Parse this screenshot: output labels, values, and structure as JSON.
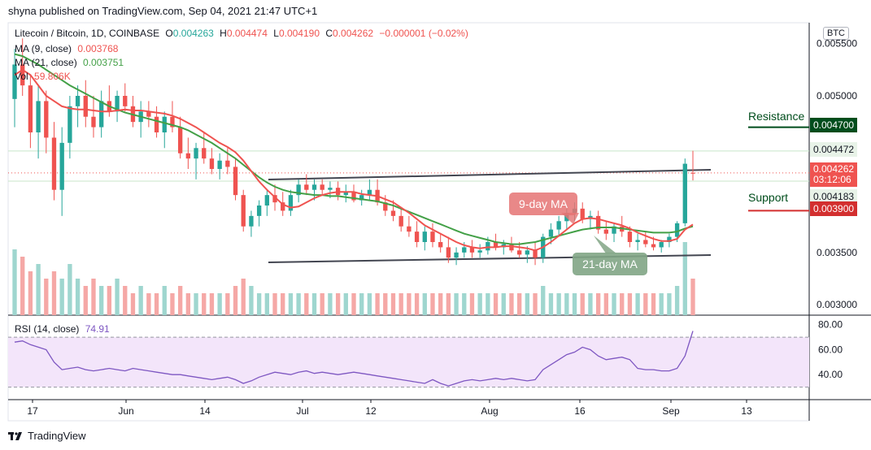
{
  "header": {
    "publisher": "shyna published on TradingView.com, Sep 04, 2021 21:47 UTC+1"
  },
  "legend": {
    "symbol": "Litecoin / Bitcoin, 1D, COINBASE",
    "o_label": "O",
    "o_value": "0.004263",
    "h_label": "H",
    "h_value": "0.004474",
    "l_label": "L",
    "l_value": "0.004190",
    "c_label": "C",
    "c_value": "0.004262",
    "change": "−0.000001 (−0.02%)",
    "ma9_label": "MA (9, close)",
    "ma9_value": "0.003768",
    "ma21_label": "MA (21, close)",
    "ma21_value": "0.003751",
    "vol_label": "Vol",
    "vol_value": "59.806K",
    "rsi_label": "RSI (14, close)",
    "rsi_value": "74.91"
  },
  "currency_badge": "BTC",
  "annotations": {
    "resistance": "Resistance",
    "support": "Support",
    "ma9_callout": "9-day MA",
    "ma21_callout": "21-day MA"
  },
  "price_tags": {
    "resistance_level": "0.004700",
    "high_level": "0.004472",
    "current_price": "0.004262",
    "countdown": "03:12:06",
    "low_level": "0.004183",
    "support_level": "0.003900"
  },
  "footer": {
    "brand": "TradingView"
  },
  "colors": {
    "up": "#26a69a",
    "down": "#ef5350",
    "ma9": "#ef5350",
    "ma21": "#43a047",
    "rsi_line": "#7e57c2",
    "rsi_band": "#f3e5fa",
    "resistance": "#004d1c",
    "support": "#d32f2f",
    "trendline": "#434651"
  },
  "chart_data": {
    "type": "candlestick",
    "price_axis": {
      "ticks": [
        "0.005500",
        "0.005000",
        "0.004700",
        "0.003500",
        "0.003000"
      ],
      "ylim": [
        0.0029,
        0.0057
      ]
    },
    "rsi_axis": {
      "ticks": [
        "80.00",
        "60.00",
        "40.00"
      ],
      "ylim": [
        20,
        85
      ],
      "band": [
        30,
        70
      ]
    },
    "x_ticks": [
      "17",
      "Jun",
      "14",
      "Jul",
      "12",
      "Aug",
      "16",
      "Sep",
      "13"
    ],
    "levels": {
      "resistance": 0.0047,
      "support": 0.0039,
      "high": 0.004472,
      "low": 0.004183,
      "current": 0.004262
    },
    "candles": [
      [
        0.00497,
        0.00545,
        0.0047,
        0.0053
      ],
      [
        0.0053,
        0.00555,
        0.005,
        0.0051
      ],
      [
        0.0051,
        0.0052,
        0.0045,
        0.00465
      ],
      [
        0.00465,
        0.0051,
        0.0044,
        0.00495
      ],
      [
        0.00495,
        0.00505,
        0.00445,
        0.0046
      ],
      [
        0.0046,
        0.00475,
        0.004,
        0.0041
      ],
      [
        0.0041,
        0.0047,
        0.00385,
        0.00455
      ],
      [
        0.00455,
        0.005,
        0.0044,
        0.0049
      ],
      [
        0.0049,
        0.0051,
        0.0047,
        0.005
      ],
      [
        0.005,
        0.00515,
        0.0047,
        0.0048
      ],
      [
        0.0048,
        0.005,
        0.0046,
        0.0047
      ],
      [
        0.0047,
        0.00505,
        0.0046,
        0.00495
      ],
      [
        0.00495,
        0.0051,
        0.0048,
        0.00485
      ],
      [
        0.00485,
        0.00505,
        0.00475,
        0.005
      ],
      [
        0.005,
        0.00512,
        0.00485,
        0.0049
      ],
      [
        0.0049,
        0.005,
        0.0047,
        0.00475
      ],
      [
        0.00475,
        0.00495,
        0.0046,
        0.00485
      ],
      [
        0.00485,
        0.00495,
        0.0047,
        0.0048
      ],
      [
        0.0048,
        0.0049,
        0.0046,
        0.00465
      ],
      [
        0.00465,
        0.00485,
        0.0045,
        0.0048
      ],
      [
        0.0048,
        0.00495,
        0.00465,
        0.0047
      ],
      [
        0.0047,
        0.0048,
        0.0044,
        0.00445
      ],
      [
        0.00445,
        0.0046,
        0.0043,
        0.0044
      ],
      [
        0.0044,
        0.00455,
        0.0042,
        0.0045
      ],
      [
        0.0045,
        0.00465,
        0.00435,
        0.0044
      ],
      [
        0.0044,
        0.0045,
        0.00425,
        0.0043
      ],
      [
        0.0043,
        0.00445,
        0.0042,
        0.00438
      ],
      [
        0.00438,
        0.0045,
        0.00425,
        0.00432
      ],
      [
        0.00432,
        0.0044,
        0.004,
        0.00405
      ],
      [
        0.00405,
        0.0041,
        0.0037,
        0.00375
      ],
      [
        0.00375,
        0.0039,
        0.00365,
        0.00385
      ],
      [
        0.00385,
        0.004,
        0.00375,
        0.00395
      ],
      [
        0.00395,
        0.0041,
        0.00385,
        0.00405
      ],
      [
        0.00405,
        0.00415,
        0.0039,
        0.00398
      ],
      [
        0.00398,
        0.00408,
        0.00385,
        0.0039
      ],
      [
        0.0039,
        0.0041,
        0.00385,
        0.00405
      ],
      [
        0.00405,
        0.0042,
        0.00398,
        0.00415
      ],
      [
        0.00415,
        0.00425,
        0.00405,
        0.0041
      ],
      [
        0.0041,
        0.0042,
        0.004,
        0.00415
      ],
      [
        0.00415,
        0.0042,
        0.00405,
        0.0041
      ],
      [
        0.0041,
        0.00418,
        0.00402,
        0.00412
      ],
      [
        0.00412,
        0.00418,
        0.004,
        0.00405
      ],
      [
        0.00405,
        0.00415,
        0.00398,
        0.00408
      ],
      [
        0.00408,
        0.00415,
        0.00398,
        0.004
      ],
      [
        0.004,
        0.0041,
        0.00395,
        0.00405
      ],
      [
        0.00405,
        0.0042,
        0.004,
        0.0041
      ],
      [
        0.0041,
        0.0042,
        0.00395,
        0.00398
      ],
      [
        0.00398,
        0.00405,
        0.00385,
        0.0039
      ],
      [
        0.0039,
        0.004,
        0.0038,
        0.00385
      ],
      [
        0.00385,
        0.00392,
        0.0037,
        0.00375
      ],
      [
        0.00375,
        0.00385,
        0.00365,
        0.0037
      ],
      [
        0.0037,
        0.0038,
        0.00355,
        0.0036
      ],
      [
        0.0036,
        0.00375,
        0.00352,
        0.0037
      ],
      [
        0.0037,
        0.00378,
        0.00355,
        0.0036
      ],
      [
        0.0036,
        0.00368,
        0.0035,
        0.00355
      ],
      [
        0.00355,
        0.00365,
        0.0034,
        0.00345
      ],
      [
        0.00345,
        0.00355,
        0.00338,
        0.0035
      ],
      [
        0.0035,
        0.0036,
        0.00345,
        0.00355
      ],
      [
        0.00355,
        0.00362,
        0.00345,
        0.0035
      ],
      [
        0.0035,
        0.00358,
        0.00345,
        0.00352
      ],
      [
        0.00352,
        0.00365,
        0.00348,
        0.0036
      ],
      [
        0.0036,
        0.00368,
        0.00352,
        0.00355
      ],
      [
        0.00355,
        0.00362,
        0.00348,
        0.00358
      ],
      [
        0.00358,
        0.00365,
        0.0035,
        0.00352
      ],
      [
        0.00352,
        0.0036,
        0.00345,
        0.00348
      ],
      [
        0.00348,
        0.00356,
        0.0034,
        0.00352
      ],
      [
        0.00352,
        0.0036,
        0.00338,
        0.00345
      ],
      [
        0.00345,
        0.00368,
        0.0034,
        0.00365
      ],
      [
        0.00365,
        0.00378,
        0.00358,
        0.00372
      ],
      [
        0.00372,
        0.00385,
        0.00365,
        0.0038
      ],
      [
        0.0038,
        0.00392,
        0.00372,
        0.00388
      ],
      [
        0.00388,
        0.00398,
        0.0038,
        0.00392
      ],
      [
        0.00392,
        0.00398,
        0.00378,
        0.00382
      ],
      [
        0.00382,
        0.0039,
        0.00372,
        0.00385
      ],
      [
        0.00385,
        0.0039,
        0.00368,
        0.00372
      ],
      [
        0.00372,
        0.0038,
        0.00362,
        0.00368
      ],
      [
        0.00368,
        0.00378,
        0.0036,
        0.00375
      ],
      [
        0.00375,
        0.00385,
        0.00365,
        0.0037
      ],
      [
        0.0037,
        0.00375,
        0.00355,
        0.0036
      ],
      [
        0.0036,
        0.00368,
        0.00352,
        0.00362
      ],
      [
        0.00362,
        0.0037,
        0.00355,
        0.00358
      ],
      [
        0.00358,
        0.00365,
        0.00352,
        0.00355
      ],
      [
        0.00355,
        0.00362,
        0.0035,
        0.0036
      ],
      [
        0.0036,
        0.00368,
        0.00355,
        0.00365
      ],
      [
        0.00365,
        0.0038,
        0.0036,
        0.00378
      ],
      [
        0.00378,
        0.0044,
        0.00375,
        0.00435
      ],
      [
        0.004263,
        0.004474,
        0.00419,
        0.004262
      ]
    ],
    "volume": [
      0.9,
      0.8,
      0.6,
      0.7,
      0.5,
      0.6,
      0.5,
      0.7,
      0.5,
      0.4,
      0.5,
      0.4,
      0.4,
      0.5,
      0.4,
      0.3,
      0.4,
      0.3,
      0.3,
      0.4,
      0.3,
      0.4,
      0.3,
      0.3,
      0.3,
      0.3,
      0.3,
      0.3,
      0.4,
      0.5,
      0.4,
      0.3,
      0.3,
      0.3,
      0.3,
      0.3,
      0.3,
      0.3,
      0.3,
      0.3,
      0.3,
      0.3,
      0.3,
      0.3,
      0.3,
      0.3,
      0.3,
      0.3,
      0.3,
      0.3,
      0.3,
      0.3,
      0.3,
      0.3,
      0.3,
      0.3,
      0.3,
      0.3,
      0.3,
      0.3,
      0.3,
      0.3,
      0.3,
      0.3,
      0.3,
      0.3,
      0.3,
      0.4,
      0.3,
      0.3,
      0.3,
      0.3,
      0.3,
      0.3,
      0.3,
      0.3,
      0.3,
      0.3,
      0.3,
      0.3,
      0.3,
      0.3,
      0.3,
      0.3,
      0.4,
      1.0,
      0.5
    ],
    "rsi": [
      66,
      67,
      64,
      62,
      60,
      50,
      44,
      45,
      46,
      44,
      43,
      44,
      45,
      44,
      43,
      45,
      44,
      43,
      42,
      41,
      40,
      40,
      39,
      38,
      37,
      36,
      37,
      38,
      36,
      33,
      35,
      38,
      40,
      42,
      41,
      40,
      42,
      43,
      41,
      42,
      41,
      40,
      41,
      42,
      41,
      40,
      39,
      38,
      37,
      36,
      35,
      34,
      33,
      36,
      33,
      31,
      33,
      35,
      36,
      35,
      36,
      37,
      36,
      37,
      36,
      35,
      36,
      44,
      48,
      52,
      56,
      58,
      62,
      60,
      55,
      52,
      53,
      54,
      52,
      45,
      44,
      44,
      43,
      43,
      45,
      55,
      74.91
    ],
    "ma9": [
      0.0052,
      0.00525,
      0.0052,
      0.0051,
      0.005,
      0.00495,
      0.0049,
      0.00488,
      0.00487,
      0.00487,
      0.00486,
      0.00485,
      0.00485,
      0.00486,
      0.00487,
      0.00486,
      0.00486,
      0.00485,
      0.00484,
      0.00483,
      0.00481,
      0.00478,
      0.00474,
      0.0047,
      0.00465,
      0.0046,
      0.00455,
      0.00451,
      0.00446,
      0.00438,
      0.00428,
      0.00418,
      0.0041,
      0.00403,
      0.00396,
      0.00393,
      0.00394,
      0.00398,
      0.00402,
      0.00405,
      0.00407,
      0.00408,
      0.00408,
      0.00408,
      0.00406,
      0.00405,
      0.00404,
      0.00401,
      0.00398,
      0.00393,
      0.00388,
      0.00382,
      0.00376,
      0.00372,
      0.00368,
      0.00364,
      0.0036,
      0.00357,
      0.00355,
      0.00354,
      0.00355,
      0.00355,
      0.00356,
      0.00356,
      0.00355,
      0.00354,
      0.00352,
      0.00355,
      0.0036,
      0.00366,
      0.00372,
      0.00378,
      0.00382,
      0.00383,
      0.00382,
      0.0038,
      0.00378,
      0.00376,
      0.00373,
      0.00369,
      0.00366,
      0.00363,
      0.00361,
      0.00361,
      0.00363,
      0.00372,
      0.003768
    ],
    "ma21": [
      0.0054,
      0.00538,
      0.00534,
      0.0053,
      0.00525,
      0.0052,
      0.00515,
      0.0051,
      0.00506,
      0.00502,
      0.00498,
      0.00494,
      0.0049,
      0.00487,
      0.00484,
      0.00482,
      0.0048,
      0.00478,
      0.00476,
      0.00474,
      0.00472,
      0.0047,
      0.00467,
      0.00463,
      0.00459,
      0.00455,
      0.0045,
      0.00445,
      0.0044,
      0.00434,
      0.00428,
      0.00422,
      0.00417,
      0.00413,
      0.0041,
      0.00408,
      0.00407,
      0.00406,
      0.00405,
      0.00405,
      0.00404,
      0.00404,
      0.00403,
      0.00402,
      0.00401,
      0.004,
      0.00399,
      0.00397,
      0.00395,
      0.00392,
      0.00389,
      0.00386,
      0.00383,
      0.0038,
      0.00377,
      0.00374,
      0.00371,
      0.00368,
      0.00366,
      0.00364,
      0.00362,
      0.0036,
      0.00359,
      0.00358,
      0.00358,
      0.00359,
      0.0036,
      0.00362,
      0.00364,
      0.00366,
      0.00368,
      0.0037,
      0.00372,
      0.00373,
      0.00374,
      0.00374,
      0.00374,
      0.00373,
      0.00372,
      0.00371,
      0.0037,
      0.00369,
      0.00369,
      0.00369,
      0.0037,
      0.00373,
      0.003751
    ]
  }
}
